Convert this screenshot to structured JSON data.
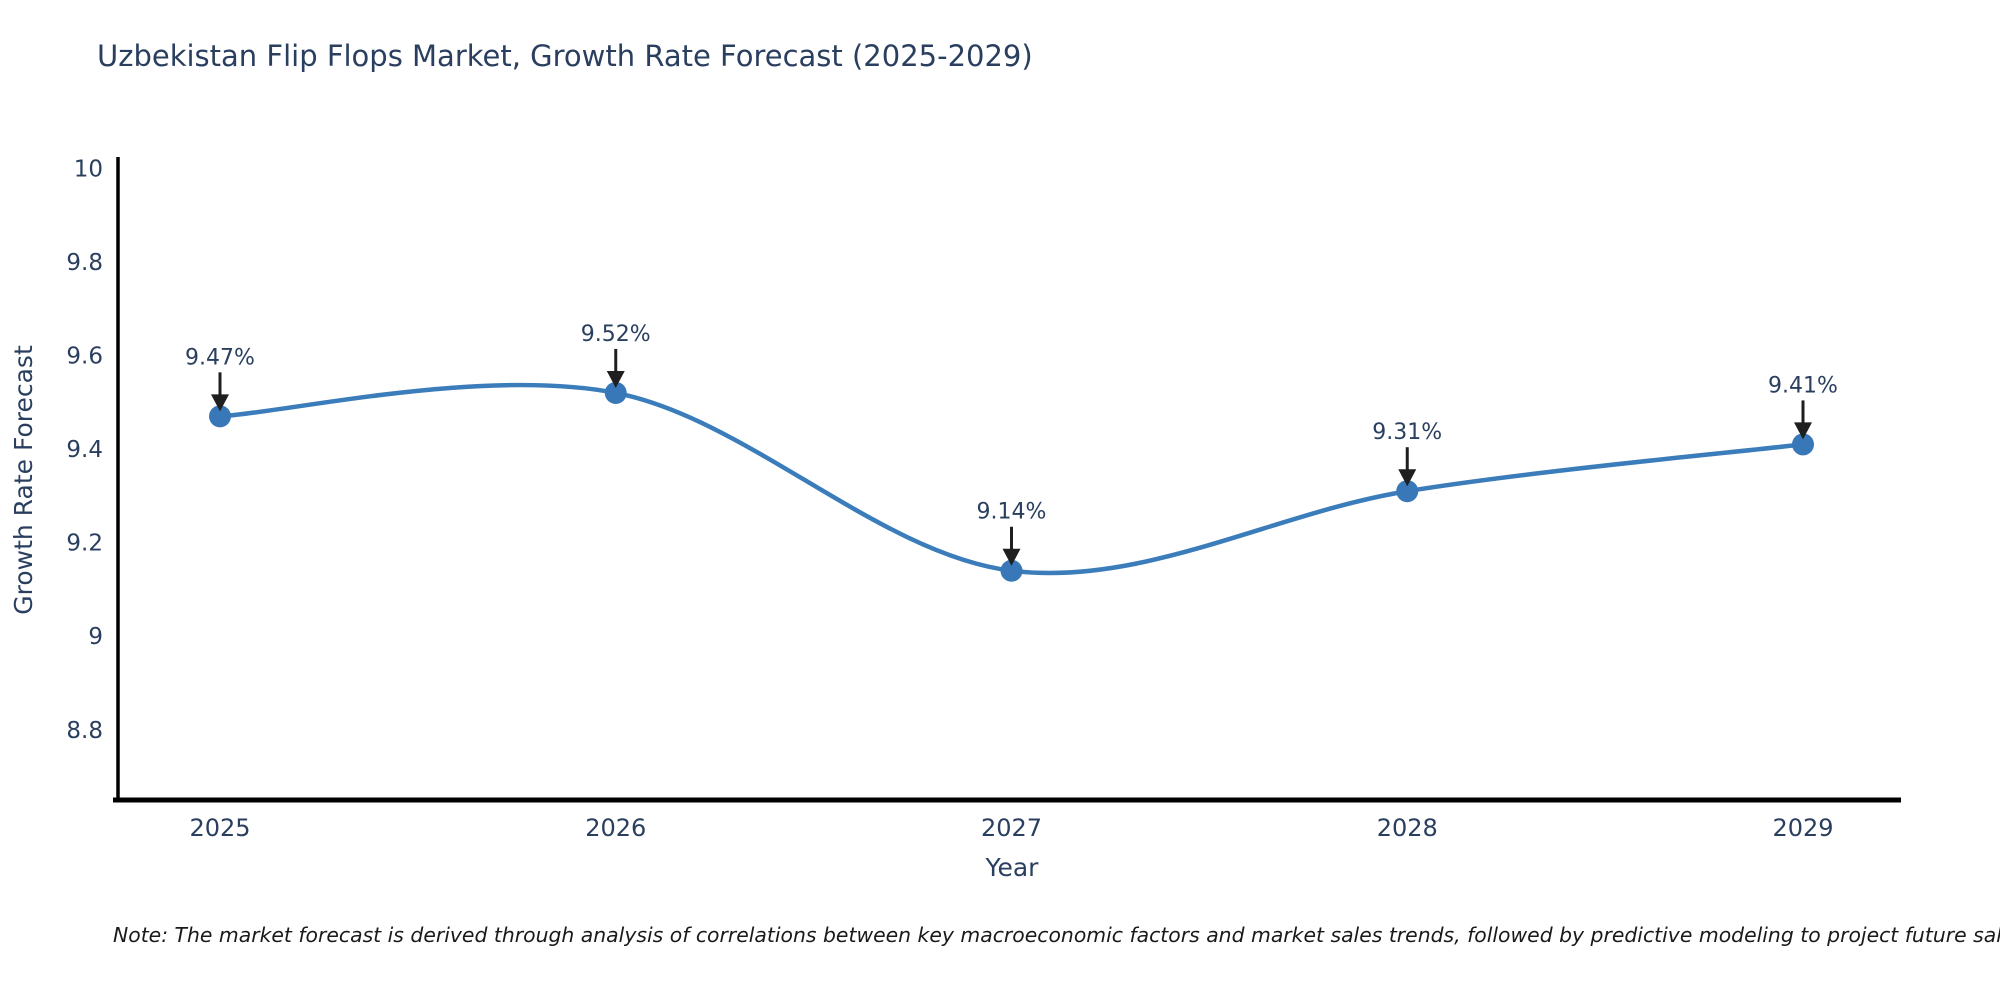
{
  "page": {
    "background": "#ffffff"
  },
  "note": "Note: The market forecast is derived through analysis of correlations between key macroeconomic factors and market sales trends, followed by predictive modeling to project future sales",
  "chart_data": {
    "type": "line",
    "title": "Uzbekistan Flip Flops Market, Growth Rate Forecast (2025-2029)",
    "xlabel": "Year",
    "ylabel": "Growth Rate Forecast",
    "categories": [
      "2025",
      "2026",
      "2027",
      "2028",
      "2029"
    ],
    "values": [
      9.47,
      9.52,
      9.14,
      9.31,
      9.41
    ],
    "point_labels": [
      "9.47%",
      "9.52%",
      "9.14%",
      "9.31%",
      "9.41%"
    ],
    "line_shape": "spline",
    "markers": true,
    "grid": false,
    "legend": "none",
    "y_ticks": [
      "10",
      "9.8",
      "9.6",
      "9.4",
      "9.2",
      "9",
      "8.8"
    ],
    "y_tick_values": [
      10,
      9.8,
      9.6,
      9.4,
      9.2,
      9.0,
      8.8
    ],
    "ylim": [
      8.65,
      10.02
    ],
    "colors": {
      "line": "#3b7cba",
      "marker": "#3878b8",
      "axis": "#000000",
      "text": "#2a3f5f",
      "arrow": "#1f1f1f",
      "note_text": "#1a1a1a",
      "background": "#ffffff"
    }
  }
}
